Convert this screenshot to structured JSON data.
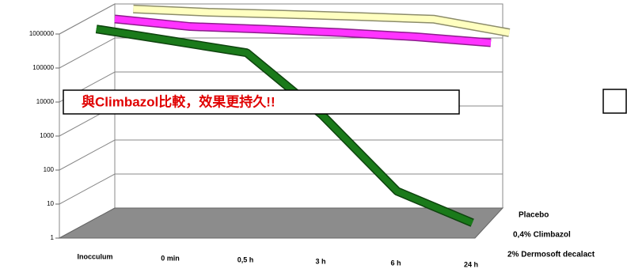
{
  "chart_data": {
    "type": "line3d",
    "categories": [
      "Inocculum",
      "0 min",
      "0,5 h",
      "3 h",
      "6 h",
      "24 h"
    ],
    "series": [
      {
        "name": "Placebo",
        "color": "#ffffc0",
        "values": [
          1000000,
          800000,
          700000,
          600000,
          500000,
          200000
        ]
      },
      {
        "name": "0,4% Climbazol",
        "color": "#ff33ff",
        "values": [
          1000000,
          600000,
          500000,
          400000,
          300000,
          200000
        ]
      },
      {
        "name": "2% Dermosoft decalact",
        "color": "#1a7a1a",
        "values": [
          1000000,
          450000,
          200000,
          3000,
          17,
          2
        ]
      }
    ],
    "ylim": [
      1,
      1000000
    ],
    "yticks": [
      1,
      10,
      100,
      1000,
      10000,
      100000,
      1000000
    ],
    "log_scale": true,
    "grid": true,
    "annotation": "與Climbazol比較，效果更持久!!"
  }
}
